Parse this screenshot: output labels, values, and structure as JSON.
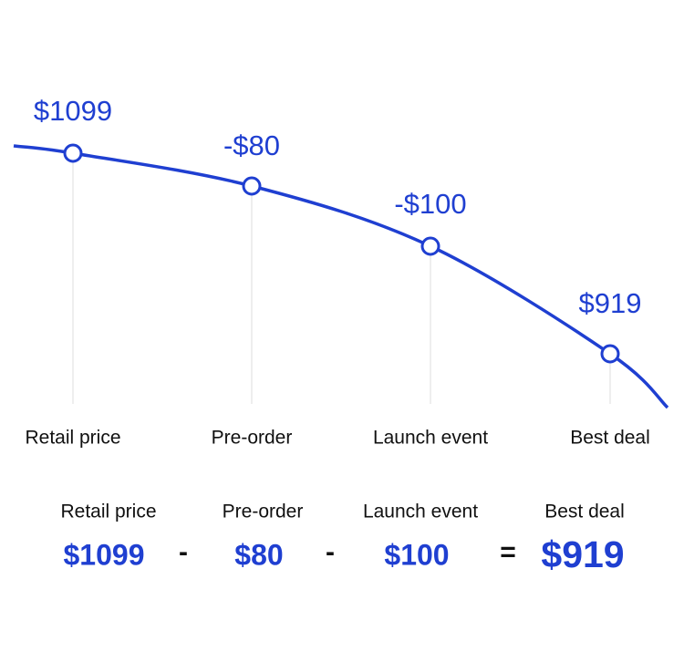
{
  "steps": [
    {
      "label": "Retail price",
      "price": "$1099"
    },
    {
      "label": "Pre-order",
      "price": "-$80"
    },
    {
      "label": "Launch event",
      "price": "-$100"
    },
    {
      "label": "Best deal",
      "price": "$919"
    }
  ],
  "summary": {
    "items": [
      {
        "label": "Retail price",
        "amount": "$1099"
      },
      {
        "label": "Pre-order",
        "amount": "$80"
      },
      {
        "label": "Launch event",
        "amount": "$100"
      },
      {
        "label": "Best deal",
        "amount": "$919"
      }
    ],
    "operators": [
      "-",
      "-",
      "="
    ]
  }
}
